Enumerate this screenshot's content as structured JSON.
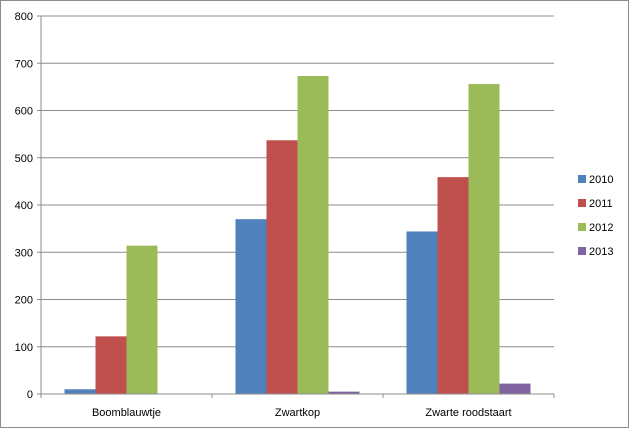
{
  "chart_data": {
    "type": "bar",
    "categories": [
      "Boomblauwtje",
      "Zwartkop",
      "Zwarte roodstaart"
    ],
    "series": [
      {
        "name": "2010",
        "color": "#4F81BD",
        "values": [
          10,
          370,
          344
        ]
      },
      {
        "name": "2011",
        "color": "#C0504D",
        "values": [
          122,
          537,
          459
        ]
      },
      {
        "name": "2012",
        "color": "#9BBB59",
        "values": [
          314,
          673,
          656
        ]
      },
      {
        "name": "2013",
        "color": "#8064A2",
        "values": [
          0,
          5,
          22
        ]
      }
    ],
    "ylim": [
      0,
      800
    ],
    "yticks": [
      "0",
      "100",
      "200",
      "300",
      "400",
      "500",
      "600",
      "700",
      "800"
    ],
    "grid": true,
    "legend_position": "right"
  }
}
